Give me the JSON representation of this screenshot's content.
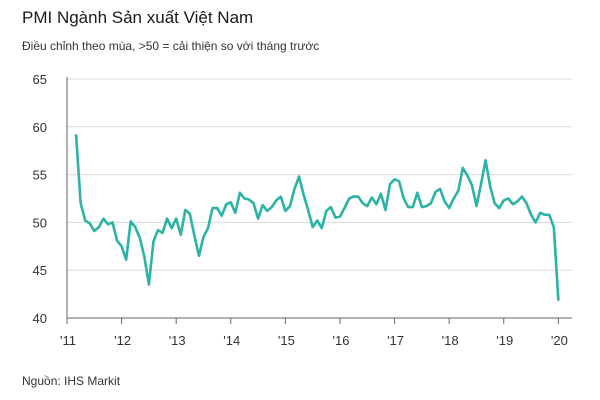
{
  "header": {
    "title": "PMI Ngành Sản xuất Việt Nam",
    "subtitle": "Điều chỉnh theo mùa, >50 = cải thiện so với tháng trước"
  },
  "footer": {
    "source": "Nguồn:  IHS Markit"
  },
  "colors": {
    "line": "#2db3a6",
    "grid": "#d9d9d9",
    "axis": "#666666"
  },
  "chart_data": {
    "type": "line",
    "title": "PMI Ngành Sản xuất Việt Nam",
    "subtitle": "Điều chỉnh theo mùa, >50 = cải thiện so với tháng trước",
    "xlabel": "",
    "ylabel": "",
    "ylim": [
      40,
      65
    ],
    "yticks": [
      40,
      45,
      50,
      55,
      60,
      65
    ],
    "xlim": [
      2011.0,
      2020.25
    ],
    "xticks": [
      {
        "value": 2011,
        "label": "'11"
      },
      {
        "value": 2012,
        "label": "'12"
      },
      {
        "value": 2013,
        "label": "'13"
      },
      {
        "value": 2014,
        "label": "'14"
      },
      {
        "value": 2015,
        "label": "'15"
      },
      {
        "value": 2016,
        "label": "'16"
      },
      {
        "value": 2017,
        "label": "'17"
      },
      {
        "value": 2018,
        "label": "'18"
      },
      {
        "value": 2019,
        "label": "'19"
      },
      {
        "value": 2020,
        "label": "'20"
      }
    ],
    "grid": true,
    "series": [
      {
        "name": "PMI",
        "start": "2011-03",
        "values": [
          59.1,
          52.0,
          50.2,
          49.9,
          49.1,
          49.5,
          50.4,
          49.8,
          50.0,
          48.1,
          47.5,
          46.1,
          50.1,
          49.5,
          48.4,
          46.4,
          43.5,
          48.0,
          49.2,
          48.9,
          50.4,
          49.4,
          50.4,
          48.7,
          51.3,
          50.9,
          48.6,
          46.5,
          48.5,
          49.4,
          51.5,
          51.5,
          50.7,
          51.9,
          52.1,
          51.0,
          53.1,
          52.5,
          52.4,
          52.0,
          50.4,
          51.8,
          51.2,
          51.6,
          52.3,
          52.7,
          51.2,
          51.7,
          53.5,
          54.8,
          52.9,
          51.3,
          49.5,
          50.2,
          49.4,
          51.2,
          51.6,
          50.5,
          50.6,
          51.5,
          52.5,
          52.7,
          52.7,
          52.0,
          51.7,
          52.6,
          51.9,
          53.0,
          51.3,
          54.0,
          54.5,
          54.3,
          52.5,
          51.6,
          51.6,
          53.1,
          51.6,
          51.7,
          52.0,
          53.2,
          53.5,
          52.2,
          51.5,
          52.5,
          53.3,
          55.7,
          54.9,
          53.9,
          51.7,
          54.0,
          56.5,
          53.8,
          52.0,
          51.5,
          52.3,
          52.5,
          51.9,
          52.2,
          52.7,
          52.0,
          50.8,
          50.0,
          51.0,
          50.8,
          50.8,
          49.5,
          41.9
        ]
      }
    ]
  }
}
